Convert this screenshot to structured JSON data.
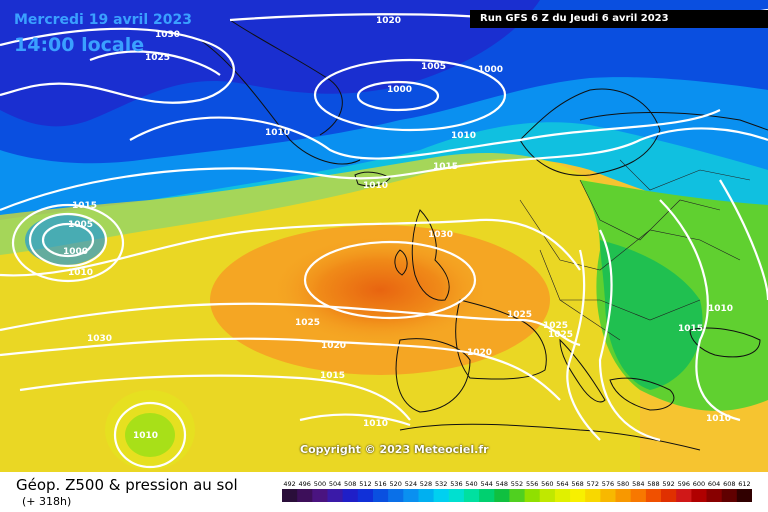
{
  "header": {
    "date": "Mercredi 19 avril 2023",
    "local_time": "14:00 locale",
    "run": "Run GFS 6 Z du Jeudi 6 avril 2023"
  },
  "copyright": "Copyright © 2023 Meteociel.fr",
  "footer": {
    "title": "Géop. Z500 & pression au sol",
    "lead_time": "(+ 318h)"
  },
  "legend": {
    "values": [
      "492",
      "496",
      "500",
      "504",
      "508",
      "512",
      "516",
      "520",
      "524",
      "528",
      "532",
      "536",
      "540",
      "544",
      "548",
      "552",
      "556",
      "560",
      "564",
      "568",
      "572",
      "576",
      "580",
      "584",
      "588",
      "592",
      "596",
      "600",
      "604",
      "608",
      "612"
    ],
    "colors": [
      "#2a0e3a",
      "#3d0f5a",
      "#4a1480",
      "#3a1aa8",
      "#1f1fc8",
      "#1030d8",
      "#0a50e0",
      "#0a70e8",
      "#0a90f0",
      "#00b0f0",
      "#00d0f0",
      "#00e0d0",
      "#00e0a0",
      "#00d070",
      "#10c040",
      "#50d020",
      "#90e000",
      "#c0e800",
      "#e0f000",
      "#f8f000",
      "#f8d800",
      "#f8b800",
      "#f89800",
      "#f87800",
      "#f05000",
      "#e03000",
      "#d01818",
      "#b00000",
      "#880000",
      "#600000",
      "#300000"
    ]
  },
  "isobars": [
    "1030",
    "1025",
    "1020",
    "1000",
    "1005",
    "1000",
    "1010",
    "1010",
    "1015",
    "1030",
    "1010",
    "1015",
    "1005",
    "1000",
    "1010",
    "1025",
    "1020",
    "1015",
    "1030",
    "1010",
    "1025",
    "1025",
    "1025",
    "1020",
    "1010",
    "1015",
    "1010",
    "1010"
  ]
}
